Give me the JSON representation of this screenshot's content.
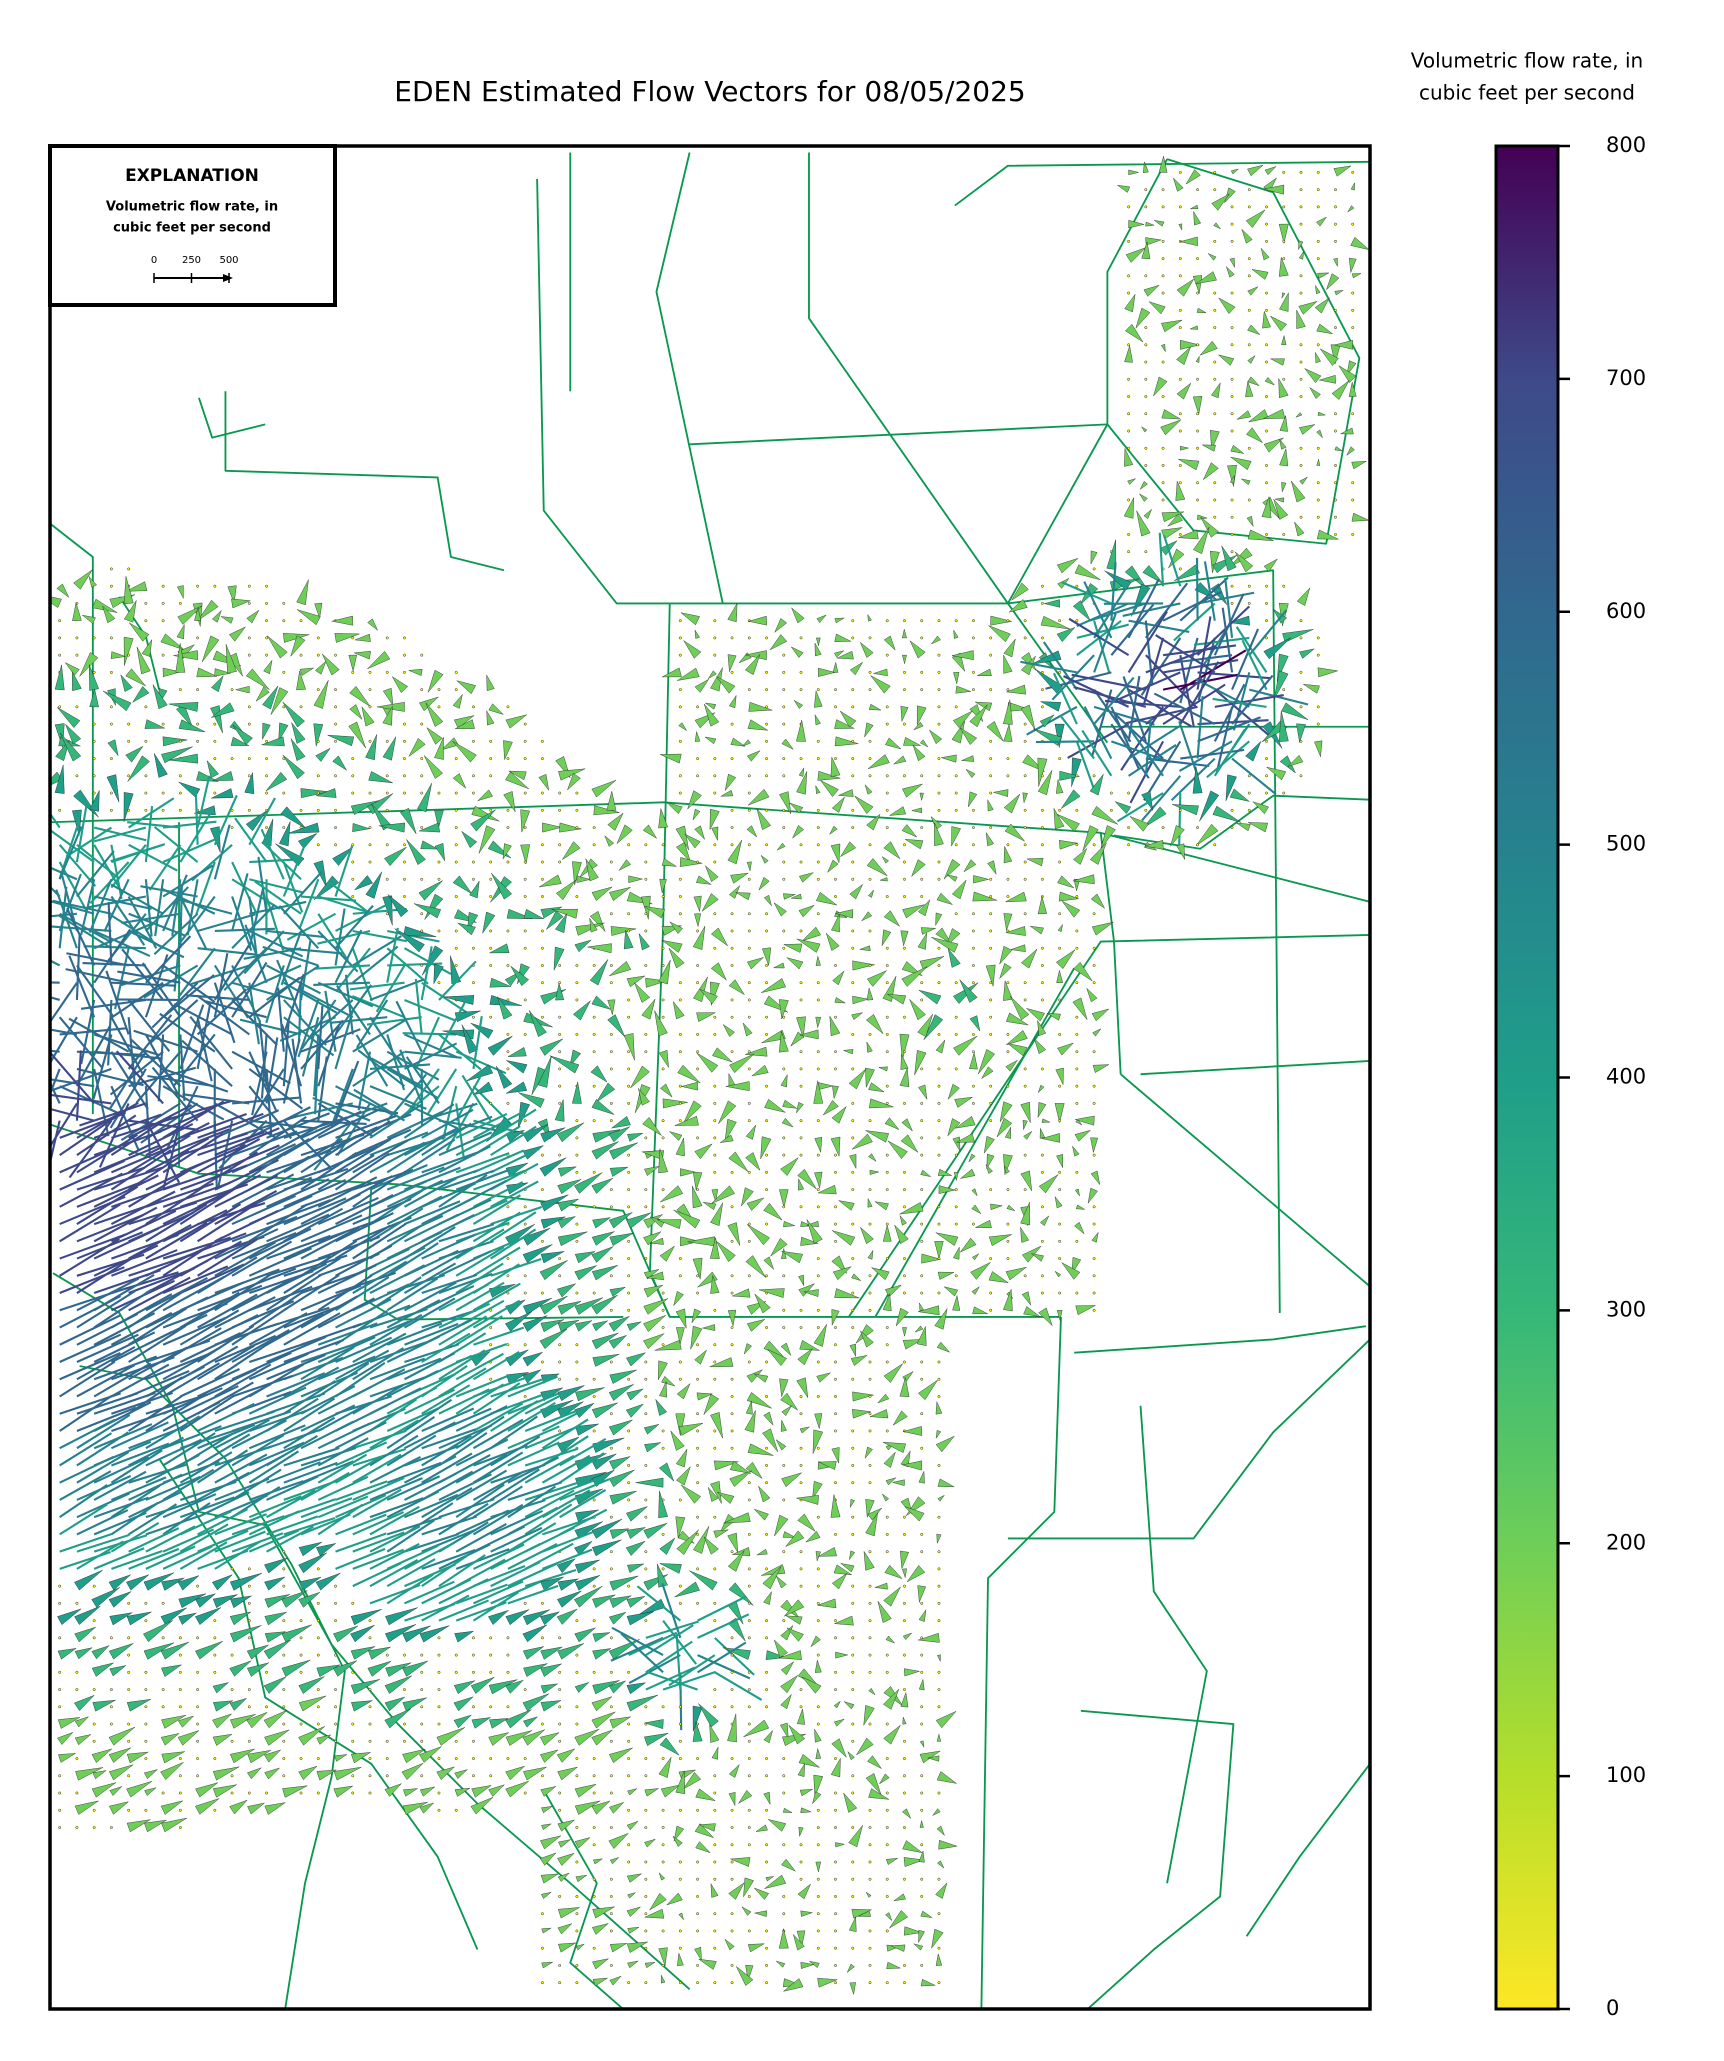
{
  "title": "EDEN Estimated Flow Vectors for 08/05/2025",
  "explanation": {
    "heading": "EXPLANATION",
    "label_lines": [
      "Volumetric flow rate, in",
      "cubic feet per second"
    ],
    "scale_ticks": [
      0,
      250,
      500
    ]
  },
  "colorbar": {
    "label_lines": [
      "Volumetric flow rate, in",
      "cubic feet per second"
    ],
    "lim": [
      0,
      800
    ],
    "ticks": [
      0,
      100,
      200,
      300,
      400,
      500,
      600,
      700,
      800
    ]
  }
}
